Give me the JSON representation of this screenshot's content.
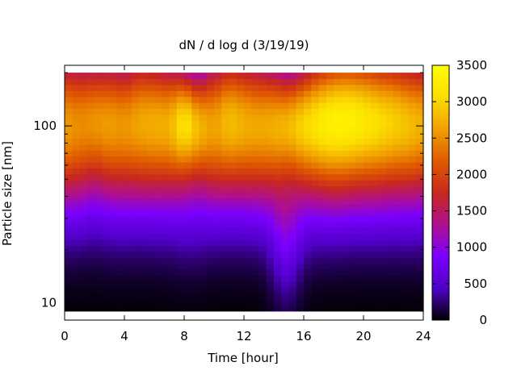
{
  "chart_data": {
    "type": "heatmap",
    "title": "dN / d log d (3/19/19)",
    "xlabel": "Time [hour]",
    "ylabel": "Particle size [nm]",
    "x_range": [
      0,
      24
    ],
    "x_ticks": [
      0,
      4,
      8,
      12,
      16,
      20,
      24
    ],
    "y_range": [
      8,
      220
    ],
    "y_scale": "log",
    "y_ticks": [
      10,
      100
    ],
    "data_y_range": [
      9,
      200
    ],
    "colorbar": {
      "range": [
        0,
        3500
      ],
      "ticks": [
        0,
        500,
        1000,
        1500,
        2000,
        2500,
        3000,
        3500
      ],
      "colormap": "gnuplot",
      "stops": [
        "#000000",
        "#5000c8",
        "#7a00ff",
        "#b0108c",
        "#c8281e",
        "#e05a00",
        "#f0a000",
        "#fcde00",
        "#ffff00"
      ]
    },
    "time_hours": [
      0,
      1,
      2,
      3,
      4,
      5,
      6,
      7,
      8,
      9,
      10,
      11,
      12,
      13,
      14,
      15,
      16,
      17,
      18,
      19,
      20,
      21,
      22,
      23,
      24
    ],
    "peak_size_nm": [
      115,
      115,
      118,
      115,
      112,
      118,
      115,
      112,
      110,
      105,
      112,
      118,
      115,
      112,
      110,
      108,
      110,
      115,
      118,
      120,
      120,
      118,
      118,
      115,
      115
    ],
    "peak_concentration": [
      2200,
      2100,
      2150,
      2200,
      2150,
      2250,
      2300,
      2300,
      2700,
      2350,
      2200,
      2400,
      2300,
      2250,
      2300,
      2350,
      2550,
      2700,
      2800,
      2800,
      2700,
      2600,
      2500,
      2400,
      2300
    ],
    "peak_spread_log": [
      0.28,
      0.28,
      0.26,
      0.27,
      0.27,
      0.28,
      0.27,
      0.26,
      0.22,
      0.22,
      0.27,
      0.27,
      0.27,
      0.27,
      0.25,
      0.22,
      0.24,
      0.26,
      0.27,
      0.27,
      0.27,
      0.27,
      0.27,
      0.27,
      0.27
    ]
  }
}
